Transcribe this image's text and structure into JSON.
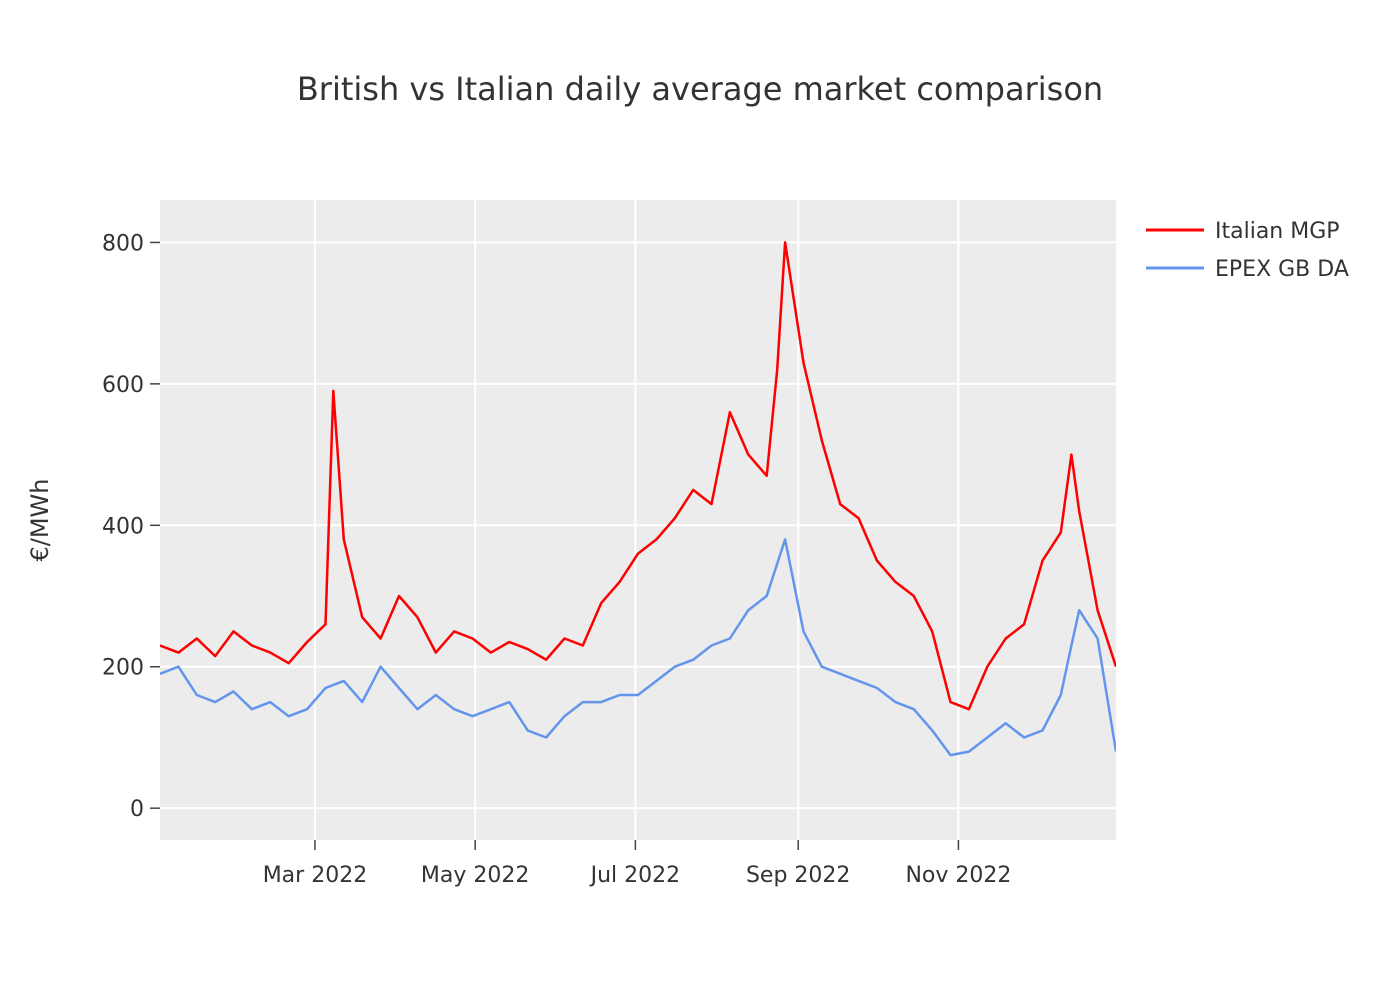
{
  "chart_data": {
    "type": "line",
    "title": "British vs Italian daily average market comparison",
    "xlabel": "",
    "ylabel": "€/MWh",
    "ylim": [
      -45,
      860
    ],
    "xlim": [
      "2022-01-01",
      "2022-12-31"
    ],
    "y_ticks": [
      0,
      200,
      400,
      600,
      800
    ],
    "x_ticks": [
      {
        "date": "2022-03-01",
        "label": "Mar 2022"
      },
      {
        "date": "2022-05-01",
        "label": "May 2022"
      },
      {
        "date": "2022-07-01",
        "label": "Jul 2022"
      },
      {
        "date": "2022-09-01",
        "label": "Sep 2022"
      },
      {
        "date": "2022-11-01",
        "label": "Nov 2022"
      }
    ],
    "grid": true,
    "legend_position": "top-right",
    "series": [
      {
        "name": "Italian MGP",
        "color": "#ff0000",
        "x": [
          "2022-01-01",
          "2022-01-08",
          "2022-01-15",
          "2022-01-22",
          "2022-01-29",
          "2022-02-05",
          "2022-02-12",
          "2022-02-19",
          "2022-02-26",
          "2022-03-05",
          "2022-03-08",
          "2022-03-12",
          "2022-03-19",
          "2022-03-26",
          "2022-04-02",
          "2022-04-09",
          "2022-04-16",
          "2022-04-23",
          "2022-04-30",
          "2022-05-07",
          "2022-05-14",
          "2022-05-21",
          "2022-05-28",
          "2022-06-04",
          "2022-06-11",
          "2022-06-18",
          "2022-06-25",
          "2022-07-02",
          "2022-07-09",
          "2022-07-16",
          "2022-07-23",
          "2022-07-30",
          "2022-08-06",
          "2022-08-13",
          "2022-08-20",
          "2022-08-24",
          "2022-08-27",
          "2022-09-03",
          "2022-09-10",
          "2022-09-17",
          "2022-09-24",
          "2022-10-01",
          "2022-10-08",
          "2022-10-15",
          "2022-10-22",
          "2022-10-29",
          "2022-11-05",
          "2022-11-12",
          "2022-11-19",
          "2022-11-26",
          "2022-12-03",
          "2022-12-10",
          "2022-12-14",
          "2022-12-17",
          "2022-12-24",
          "2022-12-31"
        ],
        "y": [
          230,
          220,
          240,
          215,
          250,
          230,
          220,
          205,
          235,
          260,
          590,
          380,
          270,
          240,
          300,
          270,
          220,
          250,
          240,
          220,
          235,
          225,
          210,
          240,
          230,
          290,
          320,
          360,
          380,
          410,
          450,
          430,
          560,
          500,
          470,
          620,
          800,
          630,
          520,
          430,
          410,
          350,
          320,
          300,
          250,
          150,
          140,
          200,
          240,
          260,
          350,
          390,
          500,
          420,
          280,
          200
        ]
      },
      {
        "name": "EPEX GB DA",
        "color": "#6495ed",
        "x": [
          "2022-01-01",
          "2022-01-08",
          "2022-01-15",
          "2022-01-22",
          "2022-01-29",
          "2022-02-05",
          "2022-02-12",
          "2022-02-19",
          "2022-02-26",
          "2022-03-05",
          "2022-03-12",
          "2022-03-19",
          "2022-03-26",
          "2022-04-02",
          "2022-04-09",
          "2022-04-16",
          "2022-04-23",
          "2022-04-30",
          "2022-05-07",
          "2022-05-14",
          "2022-05-21",
          "2022-05-28",
          "2022-06-04",
          "2022-06-11",
          "2022-06-18",
          "2022-06-25",
          "2022-07-02",
          "2022-07-09",
          "2022-07-16",
          "2022-07-23",
          "2022-07-30",
          "2022-08-06",
          "2022-08-13",
          "2022-08-20",
          "2022-08-27",
          "2022-09-03",
          "2022-09-10",
          "2022-09-17",
          "2022-09-24",
          "2022-10-01",
          "2022-10-08",
          "2022-10-15",
          "2022-10-22",
          "2022-10-29",
          "2022-11-05",
          "2022-11-12",
          "2022-11-19",
          "2022-11-26",
          "2022-12-03",
          "2022-12-10",
          "2022-12-14",
          "2022-12-17",
          "2022-12-24",
          "2022-12-31"
        ],
        "y": [
          190,
          200,
          160,
          150,
          165,
          140,
          150,
          130,
          140,
          170,
          180,
          150,
          200,
          170,
          140,
          160,
          140,
          130,
          140,
          150,
          110,
          100,
          130,
          150,
          150,
          160,
          160,
          180,
          200,
          210,
          230,
          240,
          280,
          300,
          380,
          250,
          200,
          190,
          180,
          170,
          150,
          140,
          110,
          75,
          80,
          100,
          120,
          100,
          110,
          160,
          230,
          280,
          240,
          80
        ]
      }
    ]
  }
}
